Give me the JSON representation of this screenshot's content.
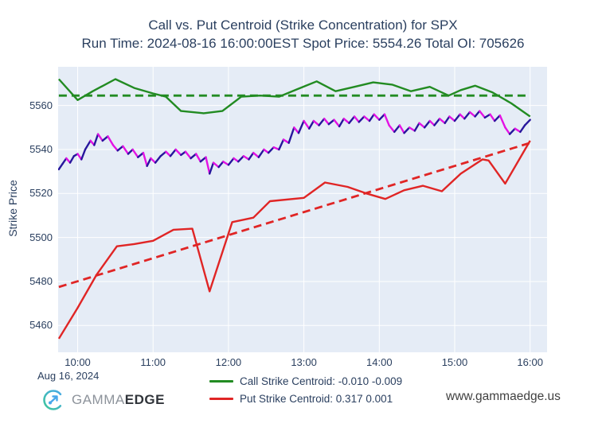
{
  "footer": {
    "brand_gamma": "GAMMA",
    "brand_edge": "EDGE",
    "website": "www.gammaedge.us"
  },
  "chart_data": {
    "type": "line",
    "title": "Call vs. Put Centroid (Strike Concentration) for SPX",
    "subtitle": "Run Time: 2024-08-16 16:00:00EST Spot Price: 5554.26 Total OI: 705626",
    "plot_bg": "#e5ecf6",
    "grid_color": "#ffffff",
    "text_color": "#2a3f5f",
    "x_axis": {
      "date_label": "Aug 16, 2024",
      "range_hours": [
        9.741,
        16.225
      ],
      "ticks": [
        {
          "h": 10,
          "label": "10:00"
        },
        {
          "h": 11,
          "label": "11:00"
        },
        {
          "h": 12,
          "label": "12:00"
        },
        {
          "h": 13,
          "label": "13:00"
        },
        {
          "h": 14,
          "label": "14:00"
        },
        {
          "h": 15,
          "label": "15:00"
        },
        {
          "h": 16,
          "label": "16:00"
        }
      ]
    },
    "y_axis": {
      "title": "Strike Price",
      "range": [
        5447.8,
        5577.6
      ],
      "ticks": [
        {
          "v": 5460,
          "label": "5460"
        },
        {
          "v": 5480,
          "label": "5480"
        },
        {
          "v": 5500,
          "label": "5500"
        },
        {
          "v": 5520,
          "label": "5520"
        },
        {
          "v": 5540,
          "label": "5540"
        },
        {
          "v": 5560,
          "label": "5560"
        }
      ]
    },
    "legend": [
      {
        "label": "Call Strike Centroid: -0.010 -0.009",
        "color": "#228b22",
        "id": "legend-item-call-strike-centroid"
      },
      {
        "label": "Put Strike Centroid: 0.317 0.001",
        "color": "#e02525",
        "id": "legend-item-put-strike-centroid"
      }
    ],
    "series": [
      {
        "id": "call-centroid-mean-dashed",
        "name": "Call Centroid Mean",
        "color": "#228b22",
        "dash": "dashed",
        "width": 2.8,
        "x": [
          9.75,
          15.95
        ],
        "y": [
          5564.5,
          5564.5
        ]
      },
      {
        "id": "put-centroid-trend-dashed",
        "name": "Put Centroid Trend",
        "color": "#e02525",
        "dash": "dashed",
        "width": 2.8,
        "x": [
          9.75,
          16.0
        ],
        "y": [
          5477.5,
          5543.0
        ]
      },
      {
        "id": "put-centroid-line",
        "name": "Put Strike Centroid: 0.317 0.001",
        "color": "#e02525",
        "dash": "solid",
        "width": 2.4,
        "x": [
          9.75,
          10.0,
          10.25,
          10.52,
          10.75,
          11.0,
          11.27,
          11.52,
          11.75,
          12.05,
          12.33,
          12.55,
          13.0,
          13.28,
          13.58,
          13.83,
          14.08,
          14.33,
          14.58,
          14.83,
          15.08,
          15.37,
          15.45,
          15.67,
          16.0
        ],
        "y": [
          5454,
          5468,
          5483,
          5496,
          5497,
          5498.5,
          5503.5,
          5504,
          5475.5,
          5507,
          5509,
          5516.5,
          5518,
          5525,
          5523,
          5520,
          5517.5,
          5521.5,
          5523.5,
          5521,
          5529,
          5535.5,
          5535,
          5524.5,
          5544
        ]
      },
      {
        "id": "call-centroid-line",
        "name": "Call Strike Centroid: -0.010 -0.009",
        "color": "#228b22",
        "dash": "solid",
        "width": 2.4,
        "x": [
          9.75,
          10.0,
          10.2,
          10.5,
          10.75,
          11.0,
          11.17,
          11.37,
          11.67,
          11.92,
          12.17,
          12.42,
          12.67,
          12.92,
          13.17,
          13.42,
          13.67,
          13.92,
          14.17,
          14.42,
          14.67,
          14.92,
          15.08,
          15.27,
          15.5,
          15.75,
          16.0
        ],
        "y": [
          5572,
          5562.5,
          5566.5,
          5572,
          5568,
          5565.5,
          5564,
          5557.5,
          5556.5,
          5557.5,
          5564,
          5564.5,
          5564,
          5567.5,
          5571,
          5566.5,
          5568.5,
          5570.5,
          5569.5,
          5566.5,
          5568.5,
          5564.5,
          5567,
          5569,
          5566,
          5561,
          5555
        ]
      },
      {
        "id": "spot-price-line",
        "name": "SPX Spot Price",
        "type": "updown",
        "color_up": "#27169c",
        "color_down": "#e412e4",
        "width": 2.4,
        "x": [
          9.75,
          9.8,
          9.85,
          9.9,
          9.95,
          10.0,
          10.05,
          10.1,
          10.17,
          10.22,
          10.27,
          10.33,
          10.4,
          10.47,
          10.53,
          10.6,
          10.67,
          10.73,
          10.8,
          10.87,
          10.92,
          10.97,
          11.03,
          11.1,
          11.17,
          11.23,
          11.3,
          11.37,
          11.43,
          11.5,
          11.57,
          11.63,
          11.7,
          11.75,
          11.8,
          11.87,
          11.93,
          12.0,
          12.07,
          12.13,
          12.2,
          12.27,
          12.33,
          12.4,
          12.47,
          12.53,
          12.6,
          12.67,
          12.73,
          12.8,
          12.87,
          12.93,
          13.0,
          13.07,
          13.13,
          13.2,
          13.27,
          13.33,
          13.4,
          13.47,
          13.53,
          13.6,
          13.67,
          13.73,
          13.8,
          13.87,
          13.93,
          14.0,
          14.07,
          14.13,
          14.2,
          14.27,
          14.33,
          14.4,
          14.47,
          14.53,
          14.6,
          14.67,
          14.73,
          14.8,
          14.87,
          14.93,
          15.0,
          15.07,
          15.13,
          15.2,
          15.27,
          15.33,
          15.4,
          15.47,
          15.53,
          15.6,
          15.67,
          15.73,
          15.8,
          15.87,
          15.93,
          16.0
        ],
        "y": [
          5531,
          5533.5,
          5536,
          5534,
          5537,
          5538,
          5535.5,
          5540,
          5544,
          5542,
          5547,
          5544,
          5546,
          5542,
          5539.5,
          5541.5,
          5538,
          5540,
          5536.5,
          5538.5,
          5532.5,
          5536,
          5534,
          5537,
          5539,
          5537,
          5540,
          5537.5,
          5539,
          5536,
          5538,
          5534.5,
          5536.5,
          5529,
          5534,
          5532,
          5534.5,
          5533,
          5536,
          5534.5,
          5537,
          5535.5,
          5538.5,
          5536.5,
          5540,
          5538.5,
          5541,
          5540,
          5544.5,
          5543,
          5550,
          5547.5,
          5553,
          5549.5,
          5553,
          5551,
          5554,
          5551.5,
          5553.5,
          5550.5,
          5554,
          5552,
          5555,
          5552.5,
          5555,
          5553,
          5556,
          5553.5,
          5556,
          5551,
          5548,
          5551,
          5547.5,
          5550,
          5548.5,
          5552,
          5550,
          5553,
          5551,
          5554,
          5552,
          5555,
          5553,
          5556,
          5554,
          5557,
          5555,
          5557.5,
          5554.5,
          5556,
          5553,
          5555.5,
          5550,
          5547,
          5549.5,
          5548,
          5551,
          5553.5
        ]
      }
    ]
  }
}
